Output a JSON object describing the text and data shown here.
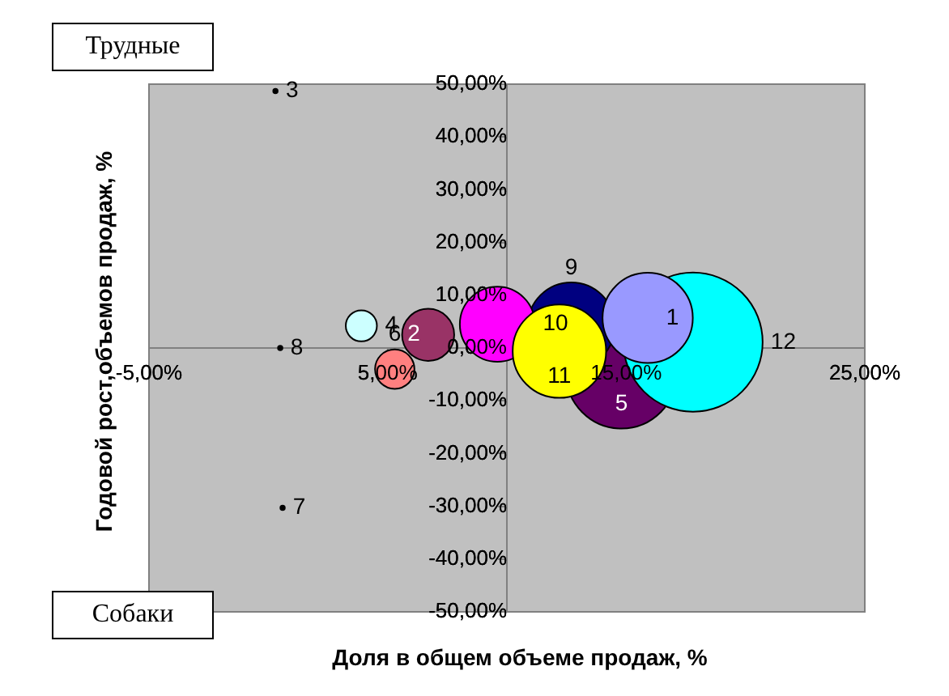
{
  "chart_data": {
    "type": "bubble",
    "xlabel": "Доля в общем объеме продаж, %",
    "ylabel": "Годовой рост,объемов продаж, %",
    "annotations": [
      "Трудные",
      "Собаки"
    ],
    "xlim": [
      -5,
      25
    ],
    "xticks": [
      {
        "value": -5,
        "label": "-5,00%"
      },
      {
        "value": 5,
        "label": "5,00%"
      },
      {
        "value": 15,
        "label": "15,00%"
      },
      {
        "value": 25,
        "label": "25,00%"
      }
    ],
    "ylim": [
      -50,
      50
    ],
    "yticks": [
      {
        "value": -50,
        "label": "-50,00%"
      },
      {
        "value": -40,
        "label": "-40,00%"
      },
      {
        "value": -30,
        "label": "-30,00%"
      },
      {
        "value": -20,
        "label": "-20,00%"
      },
      {
        "value": -10,
        "label": "-10,00%"
      },
      {
        "value": 0,
        "label": "0,00%"
      },
      {
        "value": 10,
        "label": "10,00%"
      },
      {
        "value": 20,
        "label": "20,00%"
      },
      {
        "value": 30,
        "label": "30,00%"
      },
      {
        "value": 40,
        "label": "40,00%"
      },
      {
        "value": 50,
        "label": "50,00%"
      }
    ],
    "grid": false,
    "series": [
      {
        "name": "2",
        "color": "#993366",
        "x": [
          6.7
        ],
        "values": [
          2.5
        ],
        "sizes": [
          0.14
        ]
      },
      {
        "name": "3",
        "color": "#000000",
        "x": [
          0.3
        ],
        "values": [
          48.7
        ],
        "sizes": [
          0.001
        ]
      },
      {
        "name": "4",
        "color": "#ccffff",
        "x": [
          3.9
        ],
        "values": [
          4.2
        ],
        "sizes": [
          0.05
        ]
      },
      {
        "name": "5",
        "color": "#660066",
        "x": [
          14.8
        ],
        "values": [
          -4.8
        ],
        "sizes": [
          0.63
        ]
      },
      {
        "name": "6",
        "color": "#ff8080",
        "x": [
          5.3
        ],
        "values": [
          -4
        ],
        "sizes": [
          0.08
        ]
      },
      {
        "name": "7",
        "color": "#000000",
        "x": [
          0.6
        ],
        "values": [
          -30.3
        ],
        "sizes": [
          0.001
        ]
      },
      {
        "name": "8",
        "color": "#000000",
        "x": [
          0.5
        ],
        "values": [
          0
        ],
        "sizes": [
          0.001
        ]
      },
      {
        "name": "9",
        "color": "#000080",
        "x": [
          12.7
        ],
        "values": [
          4.2
        ],
        "sizes": [
          0.39
        ]
      },
      {
        "name": "10",
        "color": "#ff00ff",
        "x": [
          9.6
        ],
        "values": [
          4.5
        ],
        "sizes": [
          0.29
        ]
      },
      {
        "name": "11",
        "color": "#ffff00",
        "x": [
          12.2
        ],
        "values": [
          -0.6
        ],
        "sizes": [
          0.45
        ]
      },
      {
        "name": "12",
        "color": "#00ffff",
        "x": [
          17.8
        ],
        "values": [
          1.1
        ],
        "sizes": [
          1
        ]
      },
      {
        "name": "1",
        "color": "#9999ff",
        "x": [
          15.9
        ],
        "values": [
          5.7
        ],
        "sizes": [
          0.42
        ]
      }
    ]
  }
}
